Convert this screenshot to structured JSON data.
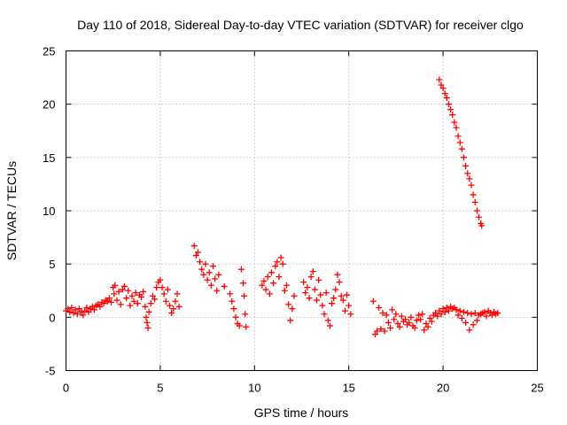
{
  "chart_data": {
    "type": "scatter",
    "title": "Day 110 of 2018, Sidereal Day-to-day VTEC variation (SDTVAR) for receiver clgo",
    "xlabel": "GPS time / hours",
    "ylabel": "SDTVAR / TECUs",
    "xlim": [
      0,
      25
    ],
    "ylim": [
      -5,
      25
    ],
    "xticks": [
      0,
      5,
      10,
      15,
      20,
      25
    ],
    "yticks": [
      -5,
      0,
      5,
      10,
      15,
      20,
      25
    ],
    "xtick_labels": [
      "0",
      "5",
      "10",
      "15",
      "20",
      "25"
    ],
    "ytick_labels": [
      "-5",
      "0",
      "5",
      "10",
      "15",
      "20",
      "25"
    ],
    "grid": true,
    "marker": "+",
    "color": "#ff0000",
    "series": [
      {
        "name": "SDTVAR",
        "points": [
          [
            0.0,
            0.6
          ],
          [
            0.1,
            0.8
          ],
          [
            0.2,
            0.5
          ],
          [
            0.3,
            0.9
          ],
          [
            0.4,
            0.4
          ],
          [
            0.5,
            0.7
          ],
          [
            0.6,
            0.3
          ],
          [
            0.7,
            0.8
          ],
          [
            0.8,
            0.5
          ],
          [
            0.9,
            0.2
          ],
          [
            1.0,
            0.6
          ],
          [
            1.1,
            0.9
          ],
          [
            1.2,
            0.5
          ],
          [
            1.3,
            0.8
          ],
          [
            1.4,
            1.0
          ],
          [
            1.5,
            0.7
          ],
          [
            1.6,
            1.1
          ],
          [
            1.7,
            1.2
          ],
          [
            1.8,
            1.0
          ],
          [
            1.9,
            1.4
          ],
          [
            2.0,
            1.3
          ],
          [
            2.1,
            1.6
          ],
          [
            2.2,
            1.5
          ],
          [
            2.3,
            1.8
          ],
          [
            2.4,
            1.4
          ],
          [
            2.5,
            2.8
          ],
          [
            2.55,
            2.2
          ],
          [
            2.6,
            3.0
          ],
          [
            2.7,
            1.6
          ],
          [
            2.8,
            2.4
          ],
          [
            2.9,
            1.2
          ],
          [
            3.0,
            2.6
          ],
          [
            3.1,
            2.9
          ],
          [
            3.2,
            1.8
          ],
          [
            3.3,
            2.5
          ],
          [
            3.4,
            1.1
          ],
          [
            3.5,
            2.0
          ],
          [
            3.6,
            1.5
          ],
          [
            3.7,
            2.3
          ],
          [
            3.8,
            1.3
          ],
          [
            3.9,
            2.1
          ],
          [
            4.0,
            1.9
          ],
          [
            4.1,
            2.4
          ],
          [
            4.2,
            1.0
          ],
          [
            4.25,
            0.0
          ],
          [
            4.3,
            -0.5
          ],
          [
            4.35,
            -1.0
          ],
          [
            4.4,
            0.5
          ],
          [
            4.5,
            1.3
          ],
          [
            4.6,
            2.0
          ],
          [
            4.7,
            1.7
          ],
          [
            4.8,
            2.8
          ],
          [
            4.9,
            3.3
          ],
          [
            5.0,
            3.5
          ],
          [
            5.1,
            2.8
          ],
          [
            5.2,
            2.2
          ],
          [
            5.3,
            1.5
          ],
          [
            5.4,
            2.6
          ],
          [
            5.5,
            1.1
          ],
          [
            5.6,
            0.4
          ],
          [
            5.7,
            0.8
          ],
          [
            5.8,
            1.5
          ],
          [
            5.9,
            2.2
          ],
          [
            6.0,
            1.0
          ],
          [
            6.8,
            6.7
          ],
          [
            6.9,
            5.8
          ],
          [
            7.0,
            6.1
          ],
          [
            7.1,
            5.2
          ],
          [
            7.2,
            4.5
          ],
          [
            7.3,
            4.0
          ],
          [
            7.4,
            5.0
          ],
          [
            7.5,
            3.5
          ],
          [
            7.6,
            4.2
          ],
          [
            7.7,
            3.0
          ],
          [
            7.8,
            4.8
          ],
          [
            7.9,
            3.6
          ],
          [
            8.0,
            2.5
          ],
          [
            8.1,
            4.0
          ],
          [
            8.4,
            2.9
          ],
          [
            8.7,
            2.2
          ],
          [
            8.8,
            1.5
          ],
          [
            8.9,
            0.8
          ],
          [
            9.0,
            0.0
          ],
          [
            9.1,
            -0.6
          ],
          [
            9.2,
            -0.8
          ],
          [
            9.3,
            4.5
          ],
          [
            9.4,
            3.2
          ],
          [
            9.45,
            2.0
          ],
          [
            9.5,
            0.3
          ],
          [
            9.55,
            -0.9
          ],
          [
            10.4,
            3.0
          ],
          [
            10.5,
            3.4
          ],
          [
            10.6,
            2.6
          ],
          [
            10.7,
            3.8
          ],
          [
            10.8,
            2.2
          ],
          [
            10.9,
            4.2
          ],
          [
            11.0,
            3.2
          ],
          [
            11.1,
            4.8
          ],
          [
            11.2,
            5.2
          ],
          [
            11.3,
            3.8
          ],
          [
            11.4,
            5.6
          ],
          [
            11.5,
            5.0
          ],
          [
            11.6,
            2.5
          ],
          [
            11.7,
            3.0
          ],
          [
            11.8,
            1.2
          ],
          [
            11.9,
            -0.3
          ],
          [
            12.0,
            0.8
          ],
          [
            12.1,
            2.0
          ],
          [
            12.6,
            3.3
          ],
          [
            12.7,
            2.3
          ],
          [
            12.8,
            2.8
          ],
          [
            12.9,
            1.8
          ],
          [
            13.0,
            3.8
          ],
          [
            13.1,
            4.3
          ],
          [
            13.2,
            2.6
          ],
          [
            13.3,
            1.6
          ],
          [
            13.4,
            3.5
          ],
          [
            13.5,
            2.1
          ],
          [
            13.6,
            1.1
          ],
          [
            13.7,
            0.3
          ],
          [
            13.8,
            2.3
          ],
          [
            13.9,
            -0.3
          ],
          [
            14.0,
            -0.8
          ],
          [
            14.1,
            1.3
          ],
          [
            14.2,
            1.8
          ],
          [
            14.3,
            2.6
          ],
          [
            14.4,
            4.0
          ],
          [
            14.5,
            3.3
          ],
          [
            14.6,
            2.0
          ],
          [
            14.7,
            1.6
          ],
          [
            14.8,
            0.6
          ],
          [
            14.9,
            2.1
          ],
          [
            15.0,
            1.1
          ],
          [
            15.1,
            0.3
          ],
          [
            16.3,
            1.5
          ],
          [
            16.4,
            -1.6
          ],
          [
            16.5,
            -1.3
          ],
          [
            16.6,
            0.9
          ],
          [
            16.7,
            -1.1
          ],
          [
            16.8,
            0.4
          ],
          [
            16.9,
            -1.3
          ],
          [
            17.0,
            0.2
          ],
          [
            17.1,
            -0.5
          ],
          [
            17.2,
            -1.0
          ],
          [
            17.3,
            0.7
          ],
          [
            17.4,
            -0.2
          ],
          [
            17.5,
            0.3
          ],
          [
            17.6,
            -0.6
          ],
          [
            17.7,
            -0.9
          ],
          [
            17.8,
            0.1
          ],
          [
            17.9,
            -0.4
          ],
          [
            18.0,
            -0.2
          ],
          [
            18.1,
            -0.7
          ],
          [
            18.2,
            -0.5
          ],
          [
            18.3,
            0.0
          ],
          [
            18.4,
            -0.8
          ],
          [
            18.5,
            -1.0
          ],
          [
            18.6,
            -0.3
          ],
          [
            18.7,
            0.2
          ],
          [
            18.8,
            -0.2
          ],
          [
            18.9,
            0.3
          ],
          [
            19.0,
            -1.2
          ],
          [
            19.1,
            -0.6
          ],
          [
            19.2,
            -0.9
          ],
          [
            19.3,
            -0.1
          ],
          [
            19.4,
            -0.4
          ],
          [
            19.5,
            0.2
          ],
          [
            19.6,
            0.4
          ],
          [
            19.7,
            0.1
          ],
          [
            19.8,
            0.6
          ],
          [
            19.9,
            0.3
          ],
          [
            20.0,
            0.8
          ],
          [
            20.1,
            0.5
          ],
          [
            20.2,
            0.9
          ],
          [
            20.3,
            0.6
          ],
          [
            20.4,
            1.0
          ],
          [
            20.5,
            0.8
          ],
          [
            20.6,
            0.9
          ],
          [
            20.7,
            0.7
          ],
          [
            20.8,
            0.2
          ],
          [
            20.9,
            0.6
          ],
          [
            21.0,
            -0.1
          ],
          [
            21.1,
            0.5
          ],
          [
            21.2,
            -0.5
          ],
          [
            21.3,
            0.4
          ],
          [
            21.4,
            -1.2
          ],
          [
            21.5,
            0.3
          ],
          [
            21.6,
            -0.7
          ],
          [
            21.7,
            0.4
          ],
          [
            21.8,
            -0.3
          ],
          [
            21.9,
            0.2
          ],
          [
            22.0,
            0.3
          ],
          [
            22.1,
            0.4
          ],
          [
            22.2,
            0.5
          ],
          [
            22.3,
            0.1
          ],
          [
            22.4,
            0.6
          ],
          [
            22.5,
            0.4
          ],
          [
            22.6,
            0.2
          ],
          [
            22.7,
            0.5
          ],
          [
            22.8,
            0.3
          ],
          [
            22.9,
            0.4
          ],
          [
            19.8,
            22.3
          ],
          [
            19.9,
            21.8
          ],
          [
            20.0,
            21.5
          ],
          [
            20.1,
            21.0
          ],
          [
            20.2,
            20.6
          ],
          [
            20.3,
            20.0
          ],
          [
            20.4,
            19.5
          ],
          [
            20.5,
            19.0
          ],
          [
            20.6,
            18.3
          ],
          [
            20.7,
            17.8
          ],
          [
            20.8,
            17.0
          ],
          [
            20.9,
            16.4
          ],
          [
            21.0,
            15.8
          ],
          [
            21.1,
            15.0
          ],
          [
            21.2,
            14.2
          ],
          [
            21.3,
            13.5
          ],
          [
            21.4,
            13.0
          ],
          [
            21.5,
            12.4
          ],
          [
            21.6,
            11.5
          ],
          [
            21.7,
            10.8
          ],
          [
            21.8,
            10.0
          ],
          [
            21.9,
            9.4
          ],
          [
            22.0,
            8.8
          ],
          [
            22.05,
            8.6
          ]
        ]
      }
    ]
  }
}
